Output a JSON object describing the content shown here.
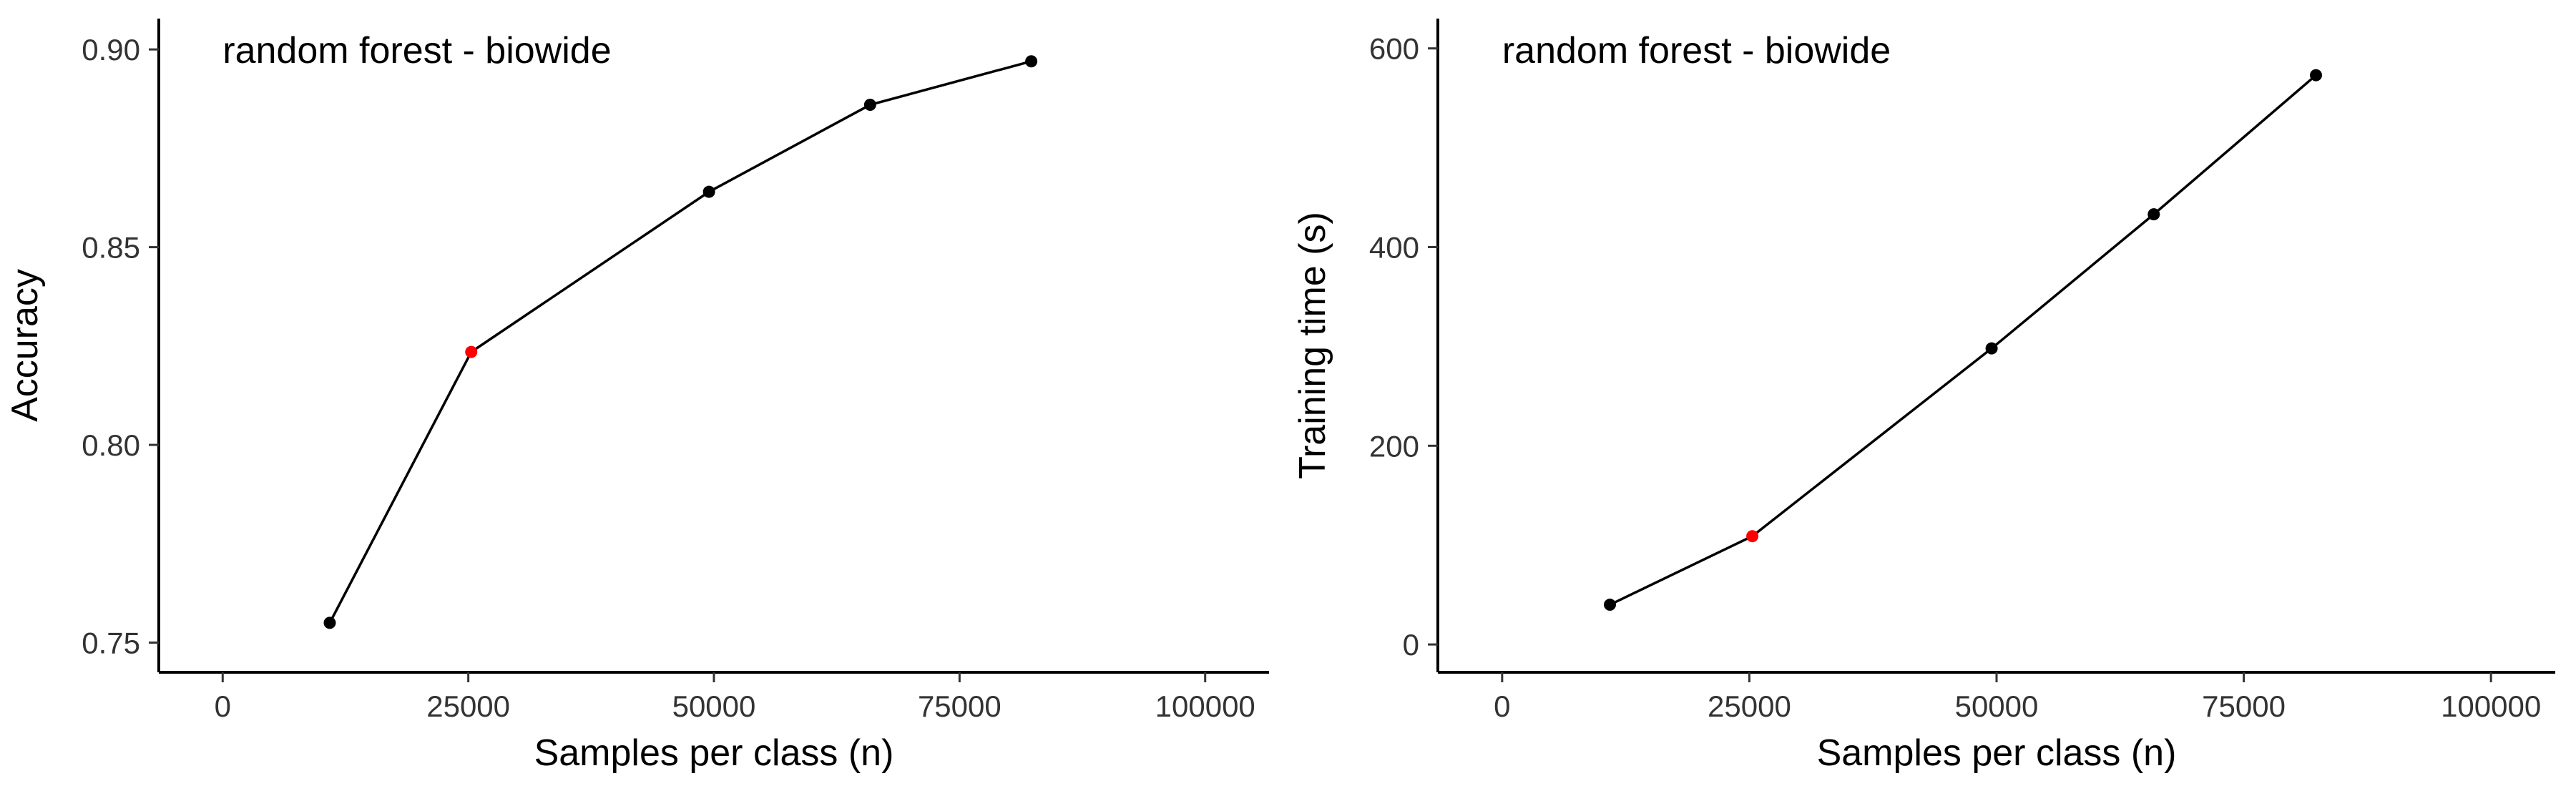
{
  "chart_data": [
    {
      "type": "line",
      "annotation": "random forest - biowide",
      "xlabel": "Samples per class (n)",
      "ylabel": "Accuracy",
      "xlim": [
        -6500,
        106500
      ],
      "ylim": [
        0.7425,
        0.9078
      ],
      "x_ticks": [
        0,
        25000,
        50000,
        75000,
        100000
      ],
      "x_tick_labels": [
        "0",
        "25000",
        "50000",
        "75000",
        "100000"
      ],
      "y_ticks": [
        0.75,
        0.8,
        0.85,
        0.9
      ],
      "y_tick_labels": [
        "0.75",
        "0.80",
        "0.85",
        "0.90"
      ],
      "grid": false,
      "series": [
        {
          "color": "#000000",
          "points": [
            {
              "x": 10900,
              "y": 0.755,
              "color": "#000000"
            },
            {
              "x": 25300,
              "y": 0.8235,
              "color": "#ff0000"
            },
            {
              "x": 49500,
              "y": 0.864,
              "color": "#000000"
            },
            {
              "x": 65900,
              "y": 0.886,
              "color": "#000000"
            },
            {
              "x": 82300,
              "y": 0.897,
              "color": "#000000"
            }
          ]
        }
      ]
    },
    {
      "type": "line",
      "annotation": "random forest - biowide",
      "xlabel": "Samples per class (n)",
      "ylabel": "Training time (s)",
      "xlim": [
        -6500,
        106500
      ],
      "ylim": [
        -28,
        630
      ],
      "x_ticks": [
        0,
        25000,
        50000,
        75000,
        100000
      ],
      "x_tick_labels": [
        "0",
        "25000",
        "50000",
        "75000",
        "100000"
      ],
      "y_ticks": [
        0,
        200,
        400,
        600
      ],
      "y_tick_labels": [
        "0",
        "200",
        "400",
        "600"
      ],
      "grid": false,
      "series": [
        {
          "color": "#000000",
          "points": [
            {
              "x": 10900,
              "y": 40,
              "color": "#000000"
            },
            {
              "x": 25300,
              "y": 109,
              "color": "#ff0000"
            },
            {
              "x": 49500,
              "y": 298,
              "color": "#000000"
            },
            {
              "x": 65900,
              "y": 433,
              "color": "#000000"
            },
            {
              "x": 82300,
              "y": 573,
              "color": "#000000"
            }
          ]
        }
      ]
    }
  ]
}
